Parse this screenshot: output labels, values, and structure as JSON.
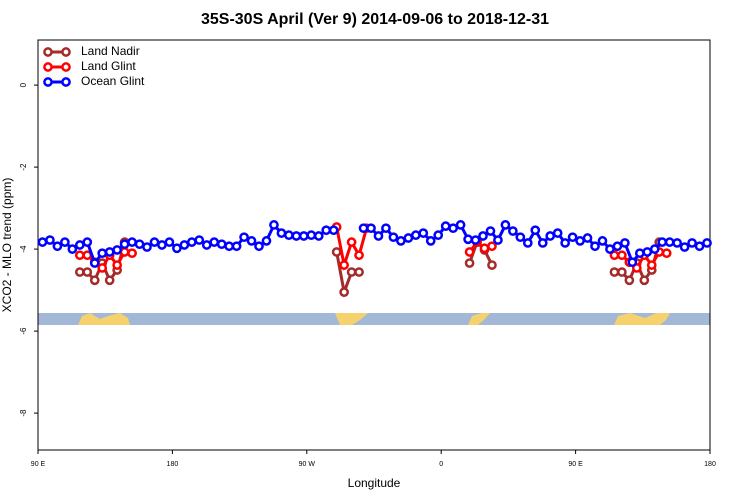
{
  "chart_data": {
    "type": "line",
    "title": "35S-30S April (Ver 9)   2014-09-06 to 2018-12-31",
    "x_label": "Longitude",
    "y_label": "XCO2 - MLO trend (ppm)",
    "xlim": [
      90,
      540
    ],
    "xticks": [
      {
        "value": 90,
        "label": "90 E"
      },
      180,
      {
        "value": 270,
        "label": "90 W"
      },
      {
        "value": 360,
        "label": "0"
      },
      {
        "value": 450,
        "label": "90 E"
      },
      {
        "value": 540,
        "label": "180"
      }
    ],
    "ylim": [
      -8.9,
      1.1
    ],
    "yticks": [
      0,
      -2,
      -4,
      -6,
      -8
    ],
    "legend": "top-left",
    "series": [
      {
        "name": "Land Nadir",
        "color": "#a52a2a",
        "x": [
          118,
          123,
          128,
          133,
          138,
          143,
          148,
          200,
          290,
          295,
          300,
          305,
          340,
          379,
          384,
          389,
          394,
          440,
          476,
          481,
          486,
          491,
          496,
          501,
          506
        ],
        "values": [
          -4.56,
          -4.56,
          -4.76,
          -4.34,
          -4.76,
          -4.51,
          -3.83,
          null,
          -4.07,
          -5.05,
          -4.56,
          -4.56,
          null,
          -4.34,
          -3.83,
          -4.02,
          -4.39,
          null,
          -4.56,
          -4.56,
          -4.76,
          -4.34,
          -4.76,
          -4.51,
          -3.83
        ]
      },
      {
        "name": "Land Glint",
        "color": "#ff0000",
        "x": [
          118,
          123,
          128,
          133,
          138,
          143,
          148,
          153,
          200,
          290,
          295,
          300,
          305,
          310,
          340,
          379,
          384,
          389,
          394,
          440,
          476,
          481,
          486,
          491,
          496,
          501,
          506,
          511
        ],
        "values": [
          -4.15,
          -4.15,
          -4.32,
          -4.46,
          -4.15,
          -4.39,
          -4.07,
          -4.1,
          null,
          -3.46,
          -4.39,
          -3.83,
          -4.15,
          -3.49,
          null,
          -4.07,
          -3.83,
          -3.98,
          -3.93,
          null,
          -4.15,
          -4.15,
          -4.32,
          -4.46,
          -4.15,
          -4.39,
          -4.07,
          -4.1
        ]
      },
      {
        "name": "Ocean Glint",
        "color": "#0000ff",
        "x": [
          93,
          98,
          103,
          108,
          113,
          118,
          123,
          128,
          133,
          138,
          143,
          148,
          153,
          158,
          163,
          168,
          173,
          178,
          183,
          188,
          193,
          198,
          203,
          208,
          213,
          218,
          223,
          228,
          233,
          238,
          243,
          248,
          253,
          258,
          263,
          268,
          273,
          278,
          283,
          288,
          298,
          308,
          313,
          318,
          323,
          328,
          333,
          338,
          343,
          348,
          353,
          358,
          363,
          368,
          373,
          378,
          383,
          388,
          393,
          398,
          403,
          408,
          413,
          418,
          423,
          428,
          433,
          438,
          443,
          448,
          453,
          458,
          463,
          468,
          473,
          478,
          483,
          488,
          493,
          498,
          503,
          508,
          513,
          518,
          523,
          528,
          533,
          538
        ],
        "values": [
          -3.83,
          -3.78,
          -3.93,
          -3.83,
          -4.0,
          -3.9,
          -3.83,
          -4.34,
          -4.1,
          -4.07,
          -4.02,
          -3.88,
          -3.83,
          -3.88,
          -3.95,
          -3.83,
          -3.9,
          -3.83,
          -3.98,
          -3.9,
          -3.83,
          -3.78,
          -3.9,
          -3.83,
          -3.88,
          -3.93,
          -3.93,
          -3.71,
          -3.8,
          -3.93,
          -3.8,
          -3.41,
          -3.61,
          -3.66,
          -3.68,
          -3.68,
          -3.66,
          -3.68,
          -3.54,
          -3.54,
          null,
          -3.49,
          -3.49,
          -3.68,
          -3.49,
          -3.71,
          -3.8,
          -3.73,
          -3.66,
          -3.61,
          -3.8,
          -3.66,
          -3.44,
          -3.49,
          -3.41,
          -3.76,
          -3.78,
          -3.68,
          -3.56,
          -3.78,
          -3.41,
          -3.56,
          -3.71,
          -3.85,
          -3.54,
          -3.85,
          -3.68,
          -3.61,
          -3.85,
          -3.71,
          -3.8,
          -3.73,
          -3.93,
          -3.8,
          -4.0,
          -3.93,
          -3.85,
          -4.32,
          -4.1,
          -4.07,
          -4.0,
          -3.83,
          -3.83,
          -3.85,
          -3.95,
          -3.85,
          -3.93,
          -3.85
        ]
      }
    ]
  }
}
